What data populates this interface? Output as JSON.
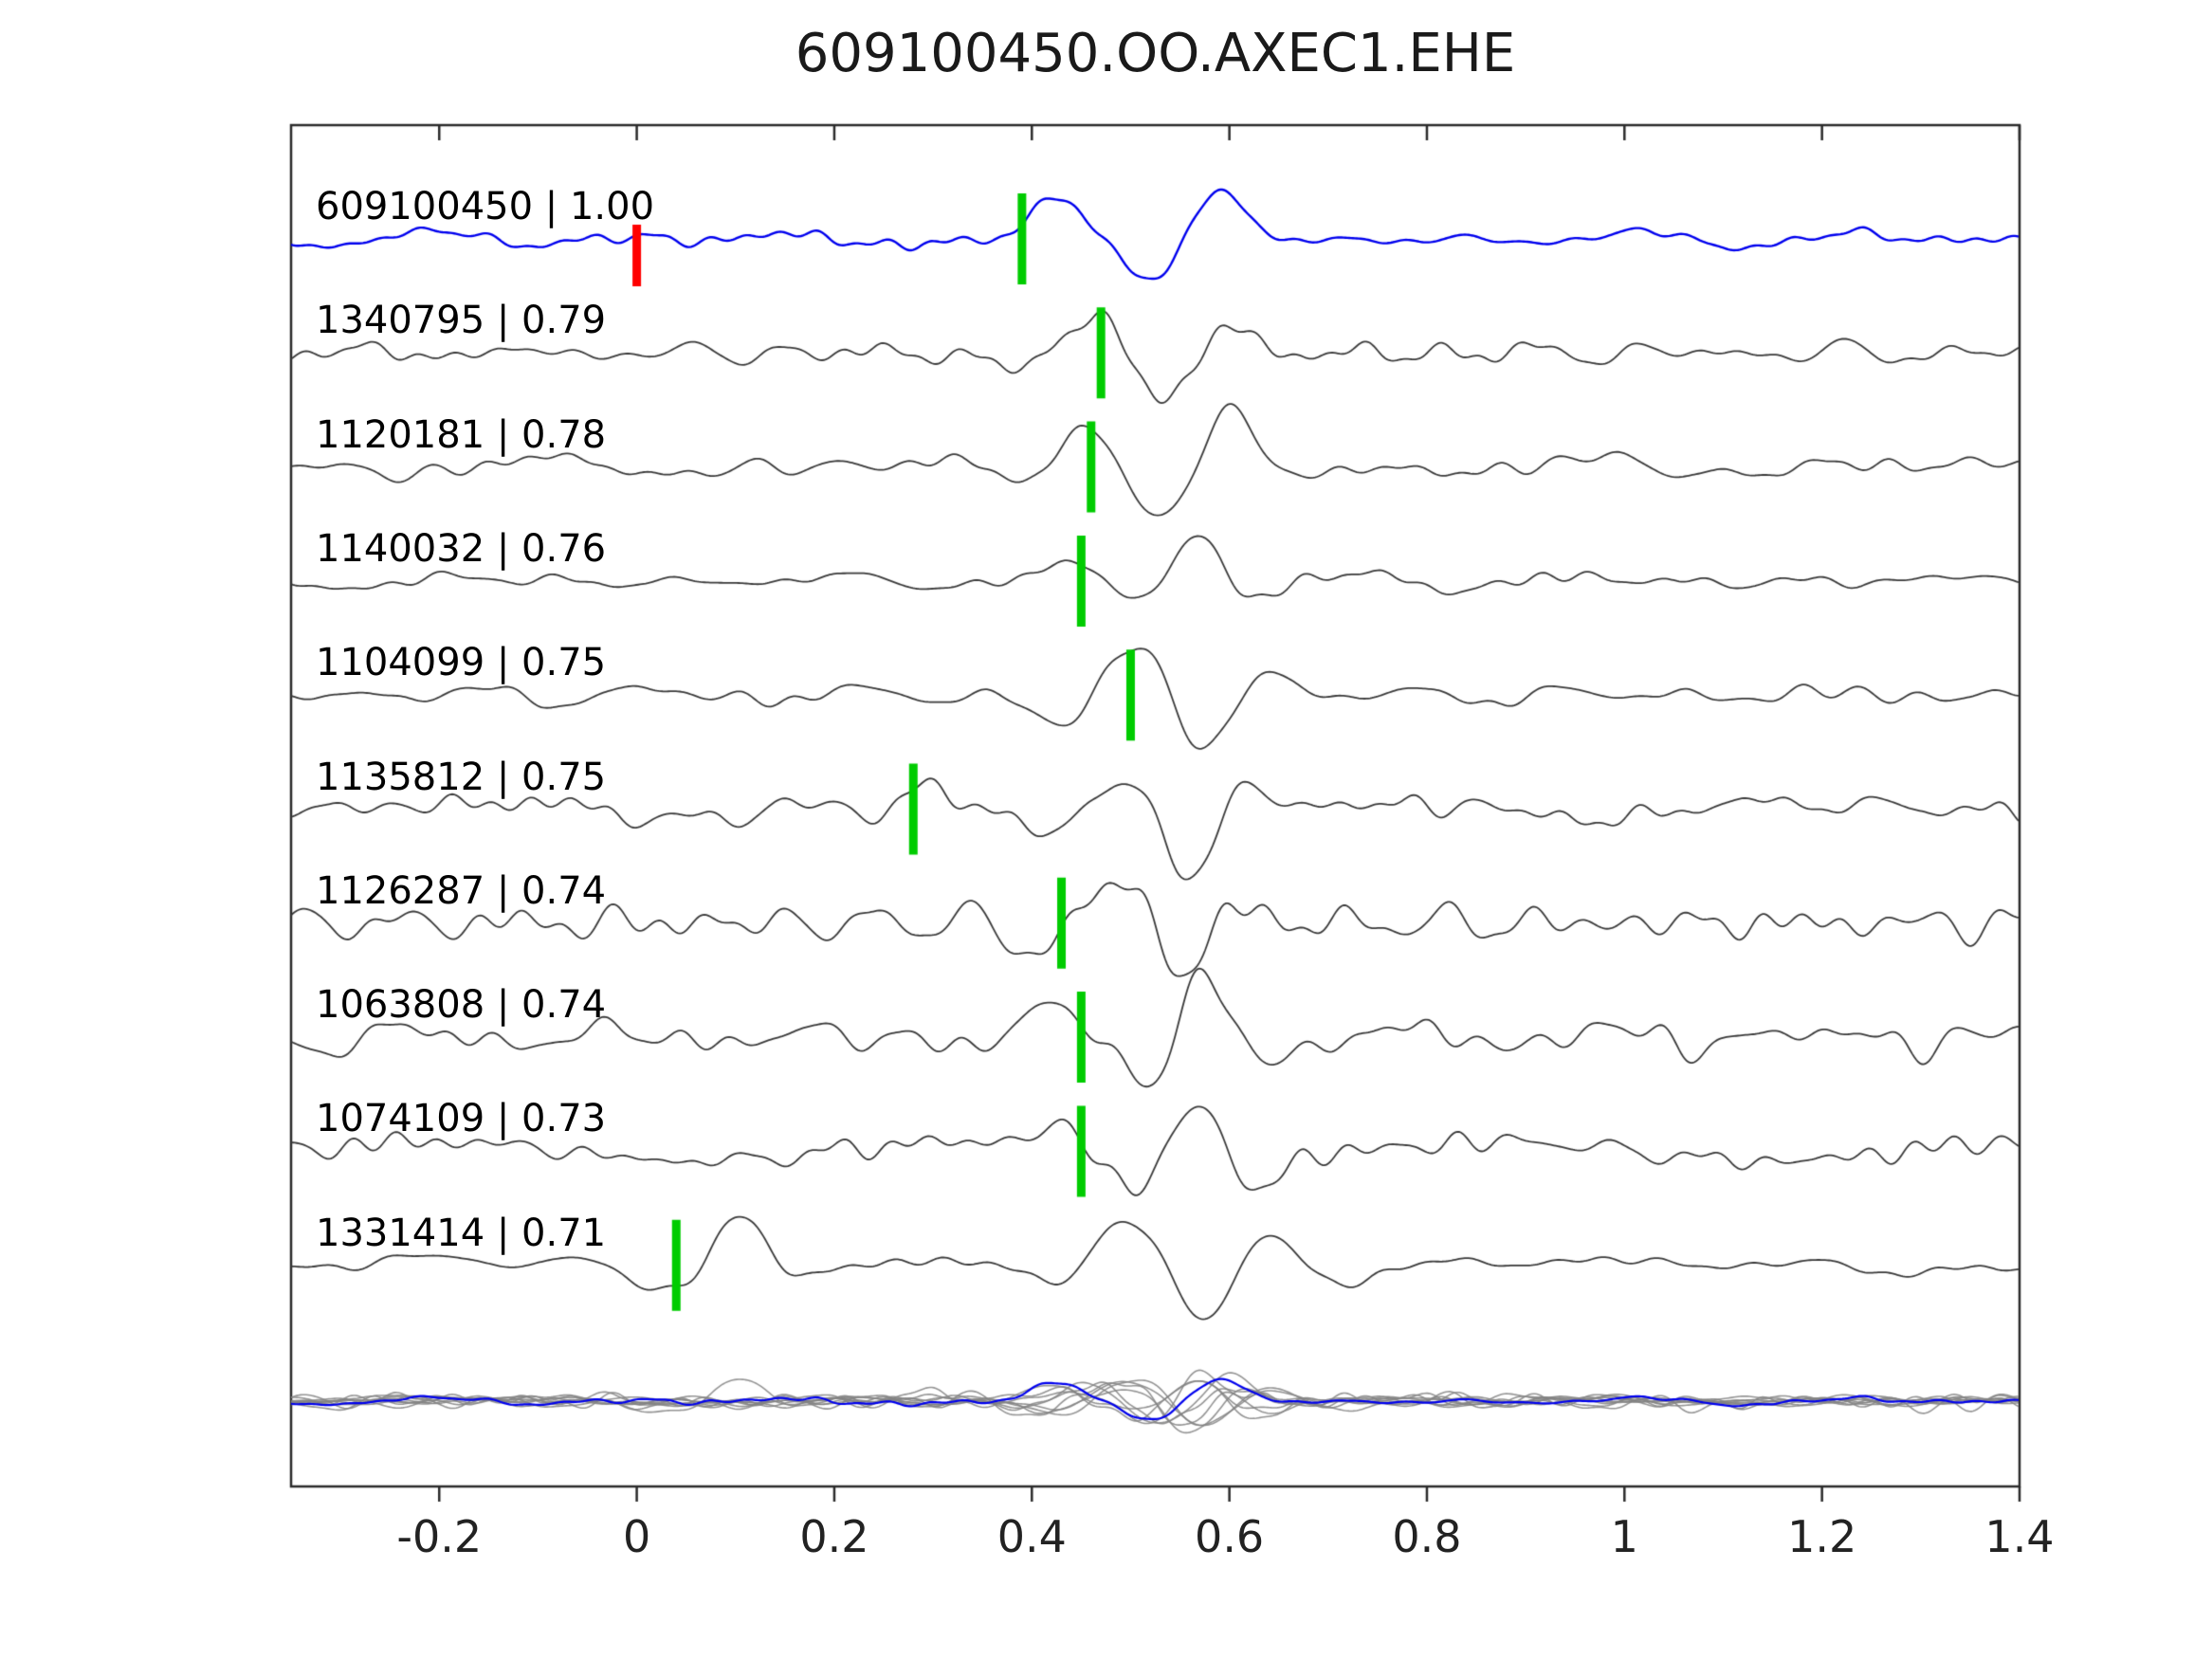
{
  "figure": {
    "title": "609100450.OO.AXEC1.EHE"
  },
  "chart_data": {
    "type": "line",
    "subtype": "seismic-waveform-correlation-stack",
    "title": "609100450.OO.AXEC1.EHE",
    "xlim": [
      -0.35,
      1.4
    ],
    "x_ticks": [
      -0.2,
      0,
      0.2,
      0.4,
      0.6,
      0.8,
      1,
      1.2,
      1.4
    ],
    "x_tick_labels": [
      "-0.2",
      "0",
      "0.2",
      "0.4",
      "0.6",
      "0.8",
      "1",
      "1.2",
      "1.4"
    ],
    "label_separator": " | ",
    "template_color": "#0000ee",
    "trace_color": "#3a3a3a",
    "pick_marker_color": "#00cc00",
    "reference_marker_color": "#ff0000",
    "event_time": 0.56,
    "traces": [
      {
        "id": "609100450",
        "cc": "1.00",
        "is_template": true,
        "color": "#0000ee",
        "pick_time": 0.39,
        "ref_marker_time": 0.0
      },
      {
        "id": "1340795",
        "cc": "0.79",
        "is_template": false,
        "pick_time": 0.47
      },
      {
        "id": "1120181",
        "cc": "0.78",
        "is_template": false,
        "pick_time": 0.46
      },
      {
        "id": "1140032",
        "cc": "0.76",
        "is_template": false,
        "pick_time": 0.45
      },
      {
        "id": "1104099",
        "cc": "0.75",
        "is_template": false,
        "pick_time": 0.5
      },
      {
        "id": "1135812",
        "cc": "0.75",
        "is_template": false,
        "pick_time": 0.28
      },
      {
        "id": "1126287",
        "cc": "0.74",
        "is_template": false,
        "pick_time": 0.43
      },
      {
        "id": "1063808",
        "cc": "0.74",
        "is_template": false,
        "pick_time": 0.45
      },
      {
        "id": "1074109",
        "cc": "0.73",
        "is_template": false,
        "pick_time": 0.45
      },
      {
        "id": "1331414",
        "cc": "0.71",
        "is_template": false,
        "pick_time": 0.04,
        "secondary_event_time": 0.09
      }
    ],
    "overlay": {
      "position": "bottom",
      "description": "all traces superimposed; gray detections with blue template on top",
      "gray_color": "#8a8a8a",
      "template_color": "#0000ee",
      "amplitude_scale": 0.45
    },
    "grid": false,
    "legend": false
  }
}
